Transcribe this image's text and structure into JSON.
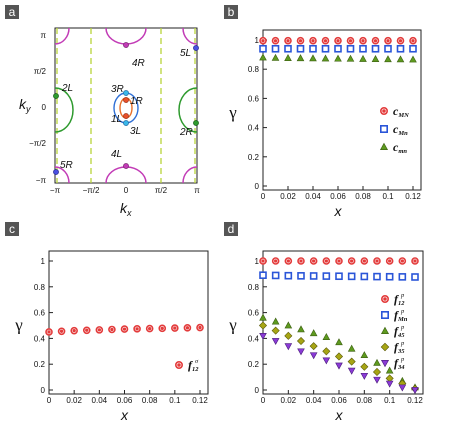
{
  "chart_data": [
    {
      "panel": "a",
      "type": "diagram",
      "xlabel_main": "k",
      "xlabel_sub": "x",
      "ylabel_main": "k",
      "ylabel_sub": "y",
      "xticks": [
        "−π",
        "−π/2",
        "0",
        "π/2",
        "π"
      ],
      "yticks": [
        "π",
        "π/2",
        "0",
        "−π/2",
        "−π"
      ],
      "annotations": [
        "4R",
        "5L",
        "2L",
        "3R",
        "1R",
        "1L",
        "3L",
        "2R",
        "5R",
        "4L"
      ],
      "colors": {
        "green": "#2e9a2e",
        "magenta": "#c23bb6",
        "dash": "#b8d43a",
        "blue": "#2f6fd6",
        "orange": "#e8702a"
      }
    },
    {
      "panel": "b",
      "type": "scatter",
      "ylabel": "γ",
      "xlabel": "x",
      "xlim": [
        0,
        0.12
      ],
      "ylim": [
        0,
        1
      ],
      "xticks": [
        "0",
        "0.02",
        "0.04",
        "0.06",
        "0.08",
        "0.1",
        "0.12"
      ],
      "yticks": [
        "0",
        "0.2",
        "0.4",
        "0.6",
        "0.8",
        "1"
      ],
      "x": [
        0,
        0.01,
        0.02,
        0.03,
        0.04,
        0.05,
        0.06,
        0.07,
        0.08,
        0.09,
        0.1,
        0.11,
        0.12
      ],
      "legend_position": "right",
      "series": [
        {
          "name": "c",
          "sub": "MN",
          "marker": "circle",
          "color": "#e33b3b",
          "values": [
            0.995,
            0.995,
            0.995,
            0.995,
            0.995,
            0.995,
            0.995,
            0.995,
            0.995,
            0.995,
            0.995,
            0.995,
            0.995
          ]
        },
        {
          "name": "c",
          "sub": "Mn",
          "marker": "square",
          "color": "#2a55d8",
          "values": [
            0.94,
            0.94,
            0.94,
            0.94,
            0.94,
            0.94,
            0.94,
            0.94,
            0.94,
            0.94,
            0.94,
            0.94,
            0.94
          ]
        },
        {
          "name": "c",
          "sub": "mn",
          "marker": "triangle",
          "color": "#5e9a1f",
          "values": [
            0.88,
            0.877,
            0.876,
            0.875,
            0.874,
            0.873,
            0.872,
            0.871,
            0.87,
            0.869,
            0.868,
            0.867,
            0.866
          ]
        }
      ]
    },
    {
      "panel": "c",
      "type": "scatter",
      "ylabel": "γ",
      "xlabel": "x",
      "xlim": [
        0,
        0.12
      ],
      "ylim": [
        0,
        1
      ],
      "xticks": [
        "0",
        "0.02",
        "0.04",
        "0.06",
        "0.08",
        "0.1",
        "0.12"
      ],
      "yticks": [
        "0",
        "0.2",
        "0.4",
        "0.6",
        "0.8",
        "1"
      ],
      "x": [
        0,
        0.01,
        0.02,
        0.03,
        0.04,
        0.05,
        0.06,
        0.07,
        0.08,
        0.09,
        0.1,
        0.11,
        0.12
      ],
      "legend_position": "bottom-right",
      "series": [
        {
          "name": "f",
          "sub": "12",
          "sup": "σ",
          "marker": "circle",
          "color": "#e33b3b",
          "values": [
            0.45,
            0.455,
            0.46,
            0.463,
            0.466,
            0.469,
            0.472,
            0.474,
            0.476,
            0.478,
            0.48,
            0.482,
            0.484
          ]
        }
      ]
    },
    {
      "panel": "d",
      "type": "scatter",
      "ylabel": "γ",
      "xlabel": "x",
      "xlim": [
        0,
        0.12
      ],
      "ylim": [
        0,
        1
      ],
      "xticks": [
        "0",
        "0.02",
        "0.04",
        "0.06",
        "0.08",
        "0.1",
        "0.12"
      ],
      "yticks": [
        "0",
        "0.2",
        "0.4",
        "0.6",
        "0.8",
        "1"
      ],
      "x": [
        0,
        0.01,
        0.02,
        0.03,
        0.04,
        0.05,
        0.06,
        0.07,
        0.08,
        0.09,
        0.1,
        0.11,
        0.12
      ],
      "legend_position": "right",
      "series": [
        {
          "name": "f",
          "sub": "12",
          "sup": "p",
          "marker": "circle",
          "color": "#e33b3b",
          "values": [
            1,
            1,
            1,
            1,
            1,
            1,
            1,
            1,
            1,
            1,
            1,
            1,
            1
          ]
        },
        {
          "name": "f",
          "sub": "Mn",
          "sup": "p",
          "marker": "square",
          "color": "#2a55d8",
          "values": [
            0.89,
            0.888,
            0.886,
            0.885,
            0.884,
            0.883,
            0.882,
            0.881,
            0.88,
            0.879,
            0.878,
            0.877,
            0.876
          ]
        },
        {
          "name": "f",
          "sub": "45",
          "sup": "p",
          "marker": "triangle",
          "color": "#5e9a1f",
          "values": [
            0.56,
            0.53,
            0.5,
            0.47,
            0.44,
            0.41,
            0.37,
            0.32,
            0.27,
            0.21,
            0.15,
            0.07,
            0.02
          ]
        },
        {
          "name": "f",
          "sub": "35",
          "sup": "p",
          "marker": "diamond",
          "color": "#a7a514",
          "values": [
            0.5,
            0.46,
            0.42,
            0.38,
            0.34,
            0.3,
            0.26,
            0.22,
            0.18,
            0.14,
            0.09,
            0.05,
            0.01
          ]
        },
        {
          "name": "f",
          "sub": "34",
          "sup": "p",
          "marker": "invtriangle",
          "color": "#8a3ad6",
          "values": [
            0.42,
            0.38,
            0.34,
            0.3,
            0.27,
            0.23,
            0.19,
            0.15,
            0.11,
            0.08,
            0.05,
            0.02,
            0.0
          ]
        }
      ]
    }
  ]
}
